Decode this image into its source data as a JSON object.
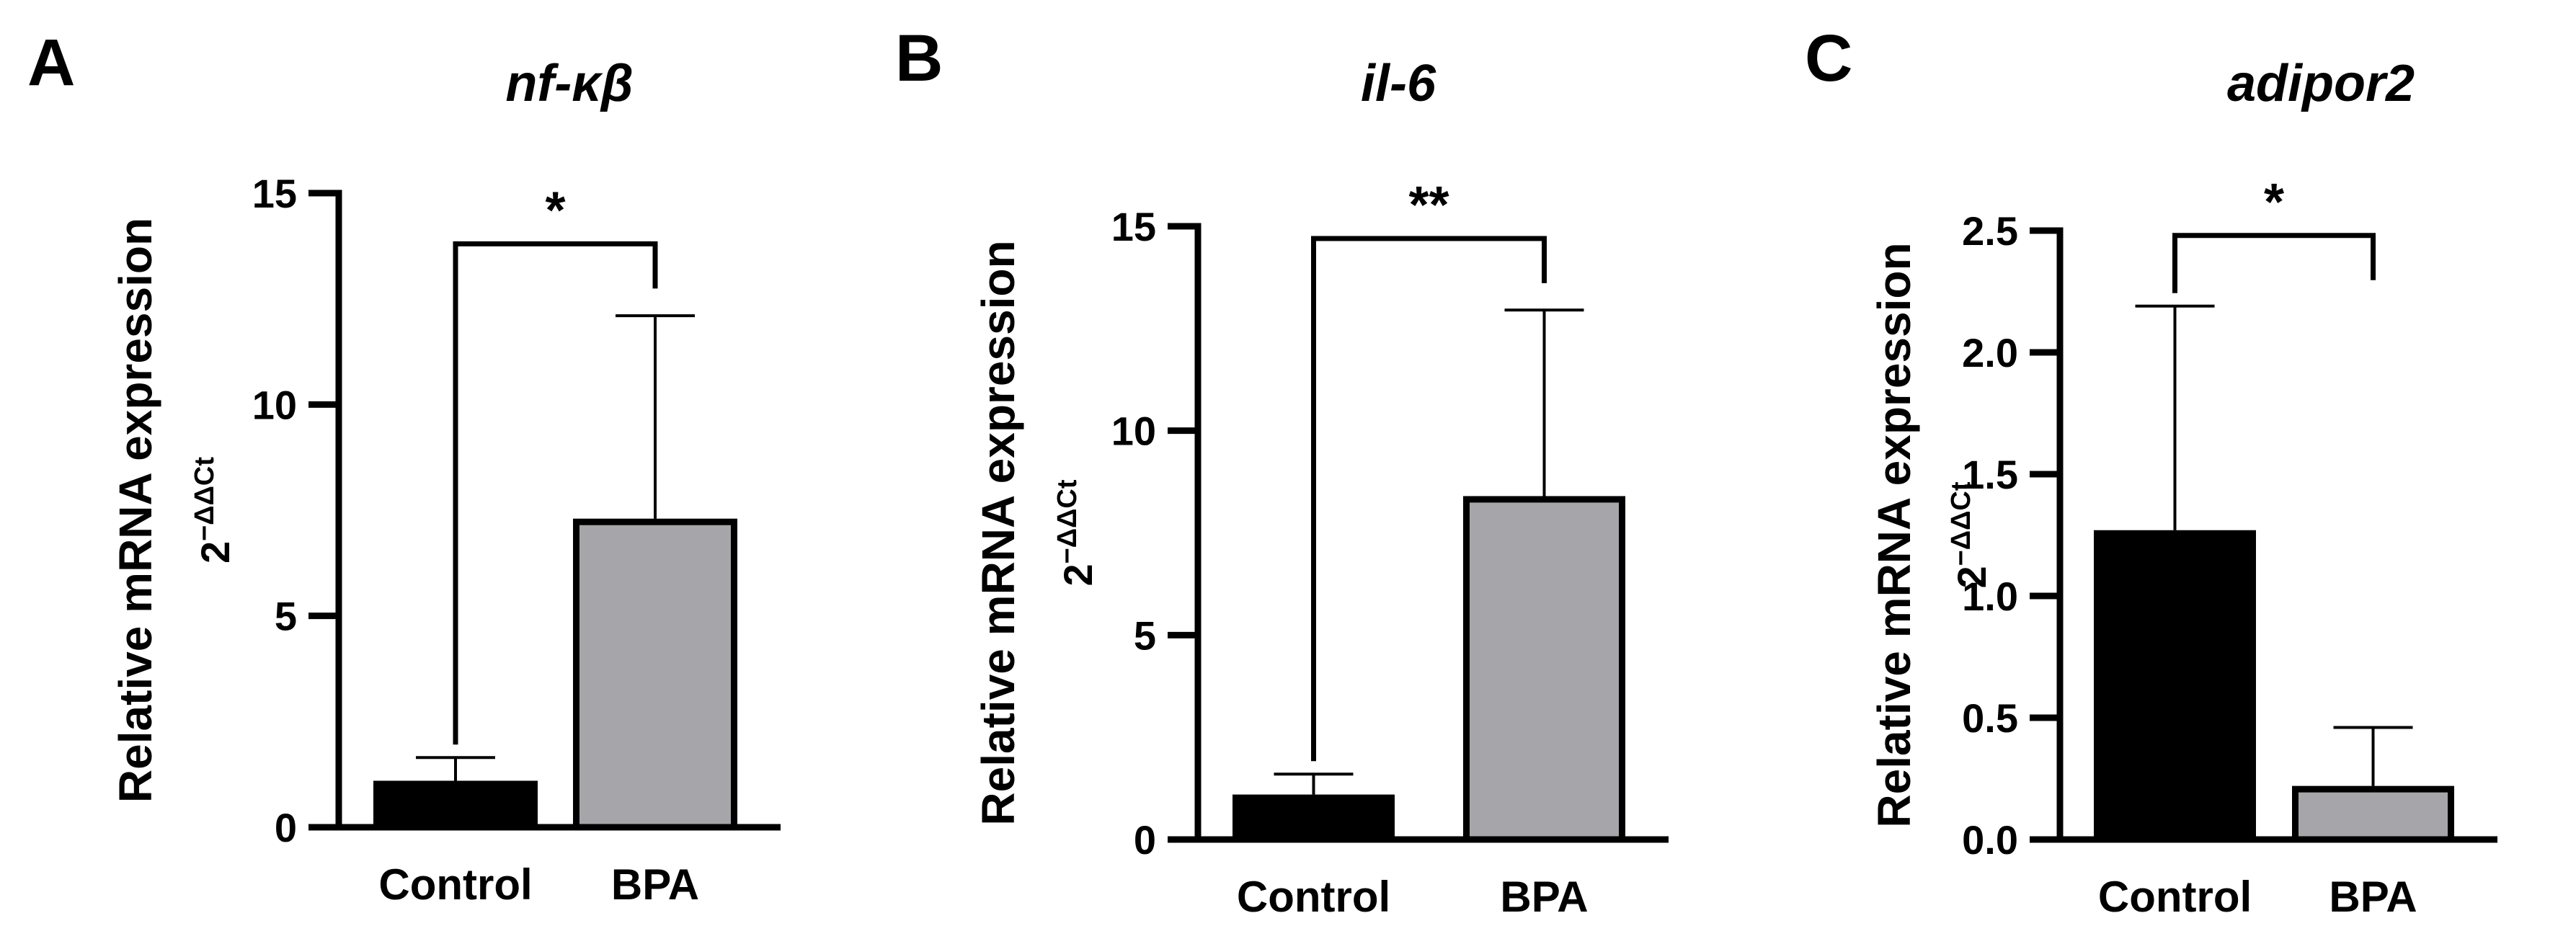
{
  "chart_data": [
    {
      "type": "bar",
      "panel_letter": "A",
      "title": "nf-κβ",
      "ylabel": "Relative mRNA expression",
      "ylabel_sub_base": "2",
      "ylabel_sub_sup": "−ΔΔCt",
      "categories": [
        "Control",
        "BPA"
      ],
      "values": [
        1.1,
        7.3
      ],
      "errors": [
        0.55,
        4.8
      ],
      "colors": [
        "#000000",
        "#a5a5aa"
      ],
      "ylim": [
        0,
        15
      ],
      "yticks": [
        0,
        5,
        10,
        15
      ],
      "ytick_labels": [
        "0",
        "5",
        "10",
        "15"
      ],
      "bracket_y": 13.8,
      "significance": "*",
      "grid": false
    },
    {
      "type": "bar",
      "panel_letter": "B",
      "title": "il-6",
      "ylabel": "Relative mRNA expression",
      "ylabel_sub_base": "2",
      "ylabel_sub_sup": "−ΔΔCt",
      "categories": [
        "Control",
        "BPA"
      ],
      "values": [
        1.1,
        8.4
      ],
      "errors": [
        0.5,
        4.55
      ],
      "colors": [
        "#000000",
        "#a5a5aa"
      ],
      "ylim": [
        0,
        15
      ],
      "yticks": [
        0,
        5,
        10,
        15
      ],
      "ytick_labels": [
        "0",
        "5",
        "10",
        "15"
      ],
      "bracket_y": 14.7,
      "significance": "**",
      "grid": false
    },
    {
      "type": "bar",
      "panel_letter": "C",
      "title": "adipor2",
      "ylabel": "Relative mRNA expression",
      "ylabel_sub_base": "2",
      "ylabel_sub_sup": "−ΔΔCt",
      "categories": [
        "Control",
        "BPA"
      ],
      "values": [
        1.27,
        0.22
      ],
      "errors": [
        0.92,
        0.24
      ],
      "colors": [
        "#000000",
        "#a5a5aa"
      ],
      "ylim": [
        0,
        2.5
      ],
      "yticks": [
        0,
        0.5,
        1.0,
        1.5,
        2.0,
        2.5
      ],
      "ytick_labels": [
        "0.0",
        "0.5",
        "1.0",
        "1.5",
        "2.0",
        "2.5"
      ],
      "bracket_y": 2.48,
      "significance": "*",
      "grid": false
    }
  ]
}
